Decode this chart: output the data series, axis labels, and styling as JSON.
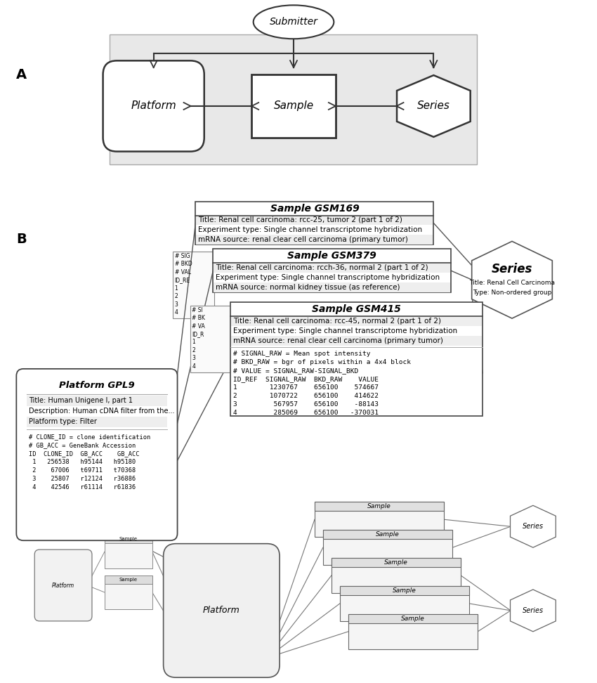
{
  "panel_A_label": "A",
  "panel_B_label": "B",
  "erd_submitter": "Submitter",
  "erd_platform": "Platform",
  "erd_sample": "Sample",
  "erd_series": "Series",
  "series_box_title": "Series",
  "series_box_line1": "Title: Renal Cell Carcinoma",
  "series_box_line2": "Type: Non-ordered group",
  "platform_title": "Platform GPL9",
  "platform_line1": "Title: Human Unigene I, part 1",
  "platform_line2": "Description: Human cDNA filter from the...",
  "platform_line3": "Platform type: Filter",
  "platform_mono1": "# CLONE_ID = clone identification",
  "platform_mono2": "# GB_ACC = GeneBank Accession",
  "platform_mono3": "ID  CLONE_ID  GB_ACC    GB_ACC",
  "platform_mono4": " 1   256538   h95144   h95180",
  "platform_mono5": " 2    67006   t69711   t70368",
  "platform_mono6": " 3    25807   r12124   r36886",
  "platform_mono7": " 4    42546   r61114   r61836",
  "gsm169_title": "Sample GSM169",
  "gsm169_line1": "Title: Renal cell carcinoma: rcc-25, tumor 2 (part 1 of 2)",
  "gsm169_line2": "Experiment type: Single channel transcriptome hybridization",
  "gsm169_line3": "mRNA source: renal clear cell carcinoma (primary tumor)",
  "gsm379_title": "Sample GSM379",
  "gsm379_line1": "Title: Renal cell carcinoma: rcch-36, normal 2 (part 1 of 2)",
  "gsm379_line2": "Experiment type: Single channel transcriptome hybridization",
  "gsm379_line3": "mRNA source: normal kidney tissue (as reference)",
  "gsm415_title": "Sample GSM415",
  "gsm415_line1": "Title: Renal cell carcinoma: rcc-45, normal 2 (part 1 of 2)",
  "gsm415_line2": "Experiment type: Single channel transcriptome hybridization",
  "gsm415_line3": "mRNA source: renal clear cell carcinoma (primary tumor)",
  "gsm415_mono1": "# SIGNAL_RAW = Mean spot intensity",
  "gsm415_mono2": "# BKD_RAW = bgr of pixels within a 4x4 block",
  "gsm415_mono3": "# VALUE = SIGNAL_RAW-SIGNAL_BKD",
  "gsm415_mono4": "ID_REF  SIGNAL_RAW  BKD_RAW    VALUE",
  "gsm415_mono5": "1        1230767    656100    574667",
  "gsm415_mono6": "2        1070722    656100    414622",
  "gsm415_mono7": "3         567957    656100    -88143",
  "gsm415_mono8": "4         285069    656100   -370031",
  "gsm169_trunc": [
    "# SIG",
    "# BKD",
    "# VAL",
    "ID_RE",
    "1",
    "2",
    "3",
    "4"
  ],
  "gsm379_trunc": [
    "# SI",
    "# BK",
    "# VA",
    "ID_R",
    "1",
    "2",
    "3",
    "4"
  ]
}
